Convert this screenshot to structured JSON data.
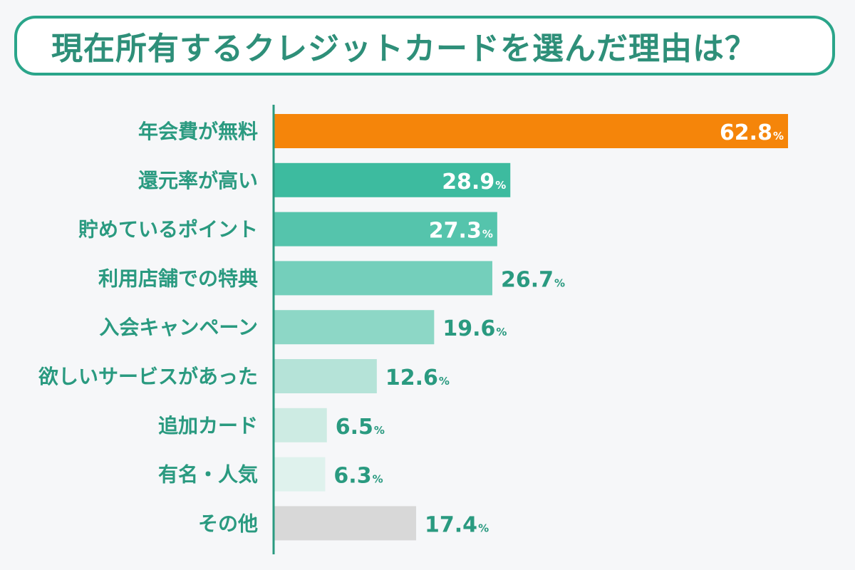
{
  "header": {
    "title": "現在所有するクレジットカードを選んだ理由は？"
  },
  "colors": {
    "accent_green": "#2aa58a",
    "label_green": "#2a9a80",
    "highlight_orange": "#f5850a",
    "other_gray": "#d8d8d8"
  },
  "chart_data": {
    "type": "bar",
    "orientation": "horizontal",
    "title": "現在所有するクレジットカードを選んだ理由は？",
    "xlabel": "",
    "ylabel": "",
    "unit": "%",
    "xlim": [
      0,
      66
    ],
    "grid": false,
    "categories": [
      "年会費が無料",
      "還元率が高い",
      "貯めているポイント",
      "利用店舗での特典",
      "入会キャンペーン",
      "欲しいサービスがあった",
      "追加カード",
      "有名・人気",
      "その他"
    ],
    "values": [
      62.8,
      28.9,
      27.3,
      26.7,
      19.6,
      12.6,
      6.5,
      6.3,
      17.4
    ],
    "value_labels": [
      "62.8",
      "28.9",
      "27.3",
      "26.7",
      "19.6",
      "12.6",
      "6.5",
      "6.3",
      "17.4"
    ],
    "bar_colors": [
      "#f5850a",
      "#3dbb9f",
      "#55c4ac",
      "#74cfbb",
      "#8dd7c6",
      "#b5e3d8",
      "#cdebe3",
      "#dff2ed",
      "#d8d8d8"
    ]
  }
}
